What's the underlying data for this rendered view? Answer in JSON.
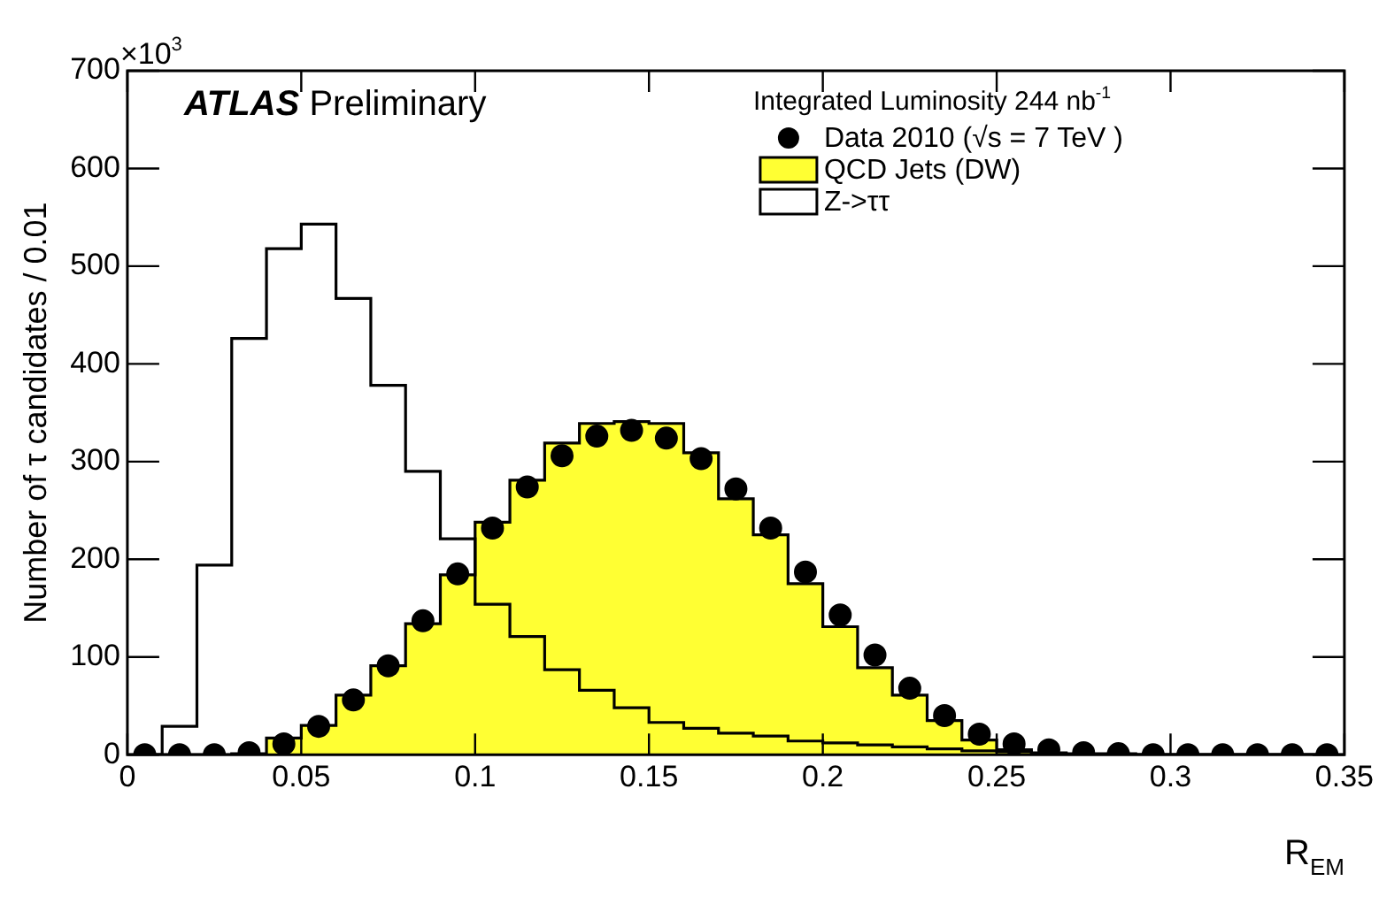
{
  "chart_data": {
    "type": "histogram",
    "xlabel": "R$_{EM}$",
    "ylabel": "Number of τ candidates / 0.01",
    "legend_title": "Integrated Luminosity 244 nb$^{-1}$",
    "annotations": [
      "×10$^{3}$",
      "ATLAS Preliminary"
    ],
    "bins": [
      0,
      0.01,
      0.02,
      0.03,
      0.04,
      0.05,
      0.06,
      0.07,
      0.08,
      0.09,
      0.1,
      0.11,
      0.12,
      0.13,
      0.14,
      0.15,
      0.16,
      0.17,
      0.18,
      0.19,
      0.2,
      0.21,
      0.22,
      0.23,
      0.24,
      0.25,
      0.26,
      0.27,
      0.28,
      0.29,
      0.3,
      0.31,
      0.32,
      0.33,
      0.34,
      0.35
    ],
    "series": [
      {
        "name": "Data 2010 (√s = 7 TeV )",
        "type": "scatter",
        "marker": "circle",
        "color": "#000000",
        "x": [
          0.005,
          0.015,
          0.025,
          0.035,
          0.045,
          0.055,
          0.065,
          0.075,
          0.085,
          0.095,
          0.105,
          0.115,
          0.125,
          0.135,
          0.145,
          0.155,
          0.165,
          0.175,
          0.185,
          0.195,
          0.205,
          0.215,
          0.225,
          0.235,
          0.245,
          0.255,
          0.265,
          0.275,
          0.285,
          0.295,
          0.305,
          0.315,
          0.325,
          0.335,
          0.345
        ],
        "values": [
          0,
          0,
          0,
          2,
          11,
          29,
          56,
          91,
          137,
          185,
          232,
          274,
          306,
          326,
          332,
          324,
          303,
          272,
          232,
          187,
          143,
          102,
          68,
          40,
          21,
          11,
          5,
          2,
          1,
          0,
          0,
          0,
          0,
          0,
          0
        ]
      },
      {
        "name": "QCD Jets (DW)",
        "type": "histogram",
        "color": "#ffff33",
        "values": [
          0,
          0,
          0,
          1,
          17,
          30,
          61,
          91,
          134,
          184,
          238,
          281,
          319,
          339,
          341,
          339,
          309,
          262,
          225,
          175,
          131,
          89,
          61,
          35,
          15,
          5,
          1,
          0,
          0,
          0,
          0,
          0,
          0,
          0,
          0
        ]
      },
      {
        "name": "Z->ττ",
        "type": "step",
        "marker": "none",
        "color": "#000000",
        "x": [
          0.005,
          0.015,
          0.025,
          0.035,
          0.045,
          0.055,
          0.065,
          0.075,
          0.085,
          0.095,
          0.105,
          0.115,
          0.125,
          0.135,
          0.145,
          0.155,
          0.165,
          0.175,
          0.185,
          0.195,
          0.205,
          0.215,
          0.225,
          0.235,
          0.245,
          0.255,
          0.265,
          0.275,
          0.285,
          0.295,
          0.305,
          0.315,
          0.325,
          0.335,
          0.345
        ],
        "values": [
          0,
          29,
          194,
          426,
          518,
          543,
          467,
          378,
          290,
          221,
          154,
          121,
          87,
          66,
          48,
          33,
          27,
          22,
          19,
          14,
          12,
          10,
          8,
          6,
          4,
          3,
          2,
          1,
          1,
          0,
          0,
          0,
          0,
          0,
          0
        ]
      }
    ],
    "xlim": [
      0,
      0.35
    ],
    "xticks": [
      0,
      0.05,
      0.1,
      0.15,
      0.2,
      0.25,
      0.3,
      0.35
    ],
    "ylim": [
      0,
      700
    ],
    "yticks": [
      0,
      100,
      200,
      300,
      400,
      500,
      600,
      700
    ],
    "legend": "top right"
  }
}
